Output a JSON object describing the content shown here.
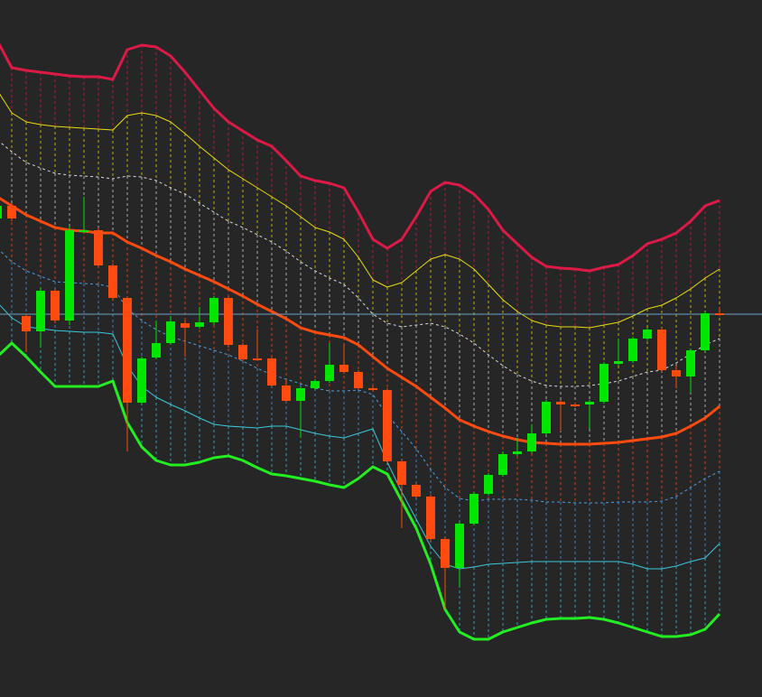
{
  "chart_data": {
    "type": "candlestick",
    "ylim": [
      0,
      772
    ],
    "xlim": [
      0.1875,
      52.9375
    ],
    "background": "#262626",
    "up_color": "#00e600",
    "down_color": "#ff4a10",
    "open": [
      530,
      544,
      422,
      405,
      450,
      417,
      516,
      517,
      478,
      442,
      326,
      376,
      392,
      414,
      410,
      415,
      442,
      390,
      375,
      375,
      345,
      328,
      342,
      350,
      368,
      360,
      342,
      340,
      261,
      235,
      222,
      175,
      143,
      192,
      225,
      246,
      269,
      272,
      292,
      327,
      324,
      324,
      327,
      369,
      372,
      397,
      407,
      362,
      355,
      384,
      425
    ],
    "high": [
      547,
      547,
      424,
      454,
      452,
      522,
      554,
      520,
      480,
      444,
      377,
      417,
      422,
      417,
      432,
      444,
      444,
      392,
      407,
      377,
      352,
      344,
      352,
      392,
      392,
      362,
      344,
      342,
      263,
      237,
      224,
      177,
      194,
      227,
      248,
      272,
      287,
      302,
      329,
      329,
      326,
      329,
      371,
      397,
      399,
      409,
      409,
      367,
      386,
      427,
      432
    ],
    "low": [
      512,
      527,
      382,
      387,
      414,
      412,
      514,
      476,
      439,
      272,
      324,
      374,
      390,
      377,
      408,
      412,
      387,
      372,
      372,
      344,
      327,
      287,
      340,
      348,
      358,
      340,
      338,
      259,
      187,
      220,
      172,
      97,
      122,
      190,
      223,
      244,
      267,
      270,
      290,
      294,
      321,
      297,
      325,
      367,
      370,
      395,
      360,
      342,
      337,
      382,
      422
    ],
    "close": [
      544,
      530,
      405,
      450,
      417,
      517,
      517,
      478,
      442,
      326,
      375,
      392,
      416,
      409,
      415,
      442,
      390,
      374,
      373,
      345,
      328,
      342,
      350,
      368,
      360,
      342,
      340,
      261,
      235,
      222,
      175,
      143,
      192,
      225,
      246,
      269,
      272,
      292,
      327,
      324,
      323,
      327,
      369,
      372,
      397,
      407,
      362,
      355,
      384,
      425,
      424
    ],
    "bands": [
      {
        "color": "#dc1a46",
        "width": 3,
        "dash": false,
        "values": [
          727,
          697,
          694,
          692,
          690,
          688,
          687,
          687,
          684,
          717,
          722,
          720,
          710,
          692,
          672,
          652,
          637,
          627,
          617,
          610,
          594,
          577,
          572,
          569,
          564,
          537,
          507,
          497,
          507,
          532,
          560,
          570,
          567,
          557,
          540,
          517,
          502,
          487,
          477,
          475,
          474,
          472,
          476,
          479,
          489,
          502,
          507,
          514,
          527,
          544,
          550
        ]
      },
      {
        "color": "#e8dc10",
        "width": 1,
        "dash": false,
        "values": [
          672,
          647,
          637,
          634,
          632,
          631,
          630,
          629,
          628,
          644,
          647,
          644,
          637,
          624,
          610,
          597,
          584,
          574,
          564,
          554,
          544,
          532,
          520,
          515,
          507,
          487,
          462,
          454,
          459,
          472,
          485,
          490,
          485,
          474,
          457,
          440,
          427,
          417,
          412,
          410,
          410,
          409,
          412,
          415,
          422,
          430,
          434,
          442,
          452,
          464,
          474
        ]
      },
      {
        "color": "#d8d8d8",
        "width": 1,
        "dash": true,
        "values": [
          617,
          604,
          592,
          586,
          580,
          578,
          577,
          576,
          574,
          577,
          576,
          572,
          564,
          557,
          547,
          537,
          527,
          520,
          512,
          504,
          494,
          482,
          472,
          464,
          457,
          442,
          424,
          414,
          410,
          412,
          414,
          410,
          402,
          392,
          379,
          367,
          357,
          350,
          345,
          344,
          344,
          345,
          347,
          350,
          355,
          360,
          362,
          370,
          380,
          390,
          397
        ]
      },
      {
        "color": "#ff4a10",
        "width": 3,
        "dash": false,
        "values": [
          554,
          544,
          534,
          527,
          520,
          517,
          516,
          514,
          514,
          504,
          497,
          489,
          482,
          474,
          467,
          460,
          452,
          444,
          435,
          427,
          419,
          409,
          404,
          401,
          398,
          390,
          377,
          364,
          354,
          344,
          332,
          320,
          307,
          300,
          294,
          289,
          285,
          282,
          281,
          280,
          280,
          280,
          281,
          282,
          284,
          286,
          288,
          292,
          300,
          309,
          322
        ]
      },
      {
        "color": "#4f9ee0",
        "width": 1,
        "dash": true,
        "values": [
          497,
          482,
          472,
          466,
          460,
          459,
          458,
          457,
          454,
          430,
          417,
          407,
          399,
          394,
          389,
          384,
          379,
          372,
          364,
          357,
          352,
          347,
          342,
          339,
          339,
          340,
          335,
          312,
          294,
          275,
          252,
          232,
          220,
          217,
          219,
          219,
          219,
          218,
          216,
          216,
          215,
          215,
          215,
          216,
          216,
          216,
          217,
          222,
          232,
          242,
          250
        ]
      },
      {
        "color": "#3cc8d8",
        "width": 1,
        "dash": false,
        "values": [
          437,
          420,
          410,
          408,
          406,
          405,
          404,
          404,
          402,
          367,
          344,
          332,
          324,
          317,
          309,
          302,
          300,
          299,
          298,
          300,
          300,
          296,
          292,
          289,
          287,
          292,
          297,
          260,
          227,
          197,
          167,
          147,
          142,
          144,
          147,
          148,
          149,
          150,
          150,
          150,
          150,
          150,
          150,
          150,
          147,
          142,
          142,
          145,
          150,
          154,
          170
        ]
      },
      {
        "color": "#22ee22",
        "width": 3,
        "dash": false,
        "values": [
          377,
          392,
          377,
          360,
          344,
          344,
          344,
          344,
          350,
          304,
          277,
          262,
          257,
          257,
          260,
          265,
          267,
          262,
          254,
          247,
          245,
          242,
          239,
          235,
          232,
          242,
          255,
          247,
          217,
          187,
          147,
          97,
          72,
          64,
          64,
          72,
          77,
          82,
          86,
          87,
          87,
          88,
          86,
          82,
          77,
          72,
          67,
          67,
          69,
          75,
          92
        ]
      }
    ],
    "price_line": {
      "value": 424,
      "color": "#6fa0c0"
    }
  }
}
